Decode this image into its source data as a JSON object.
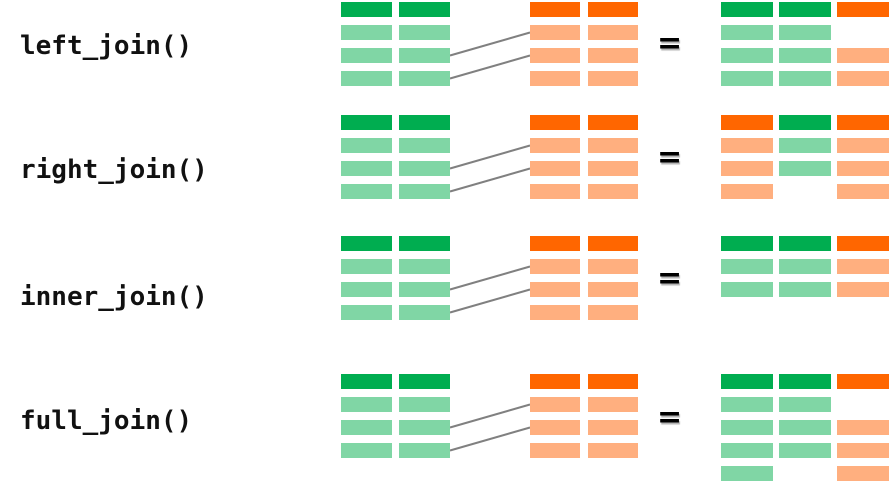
{
  "colors": {
    "left_header": "#00AD50",
    "left_row": "#80D6A5",
    "right_header": "#FF6600",
    "right_row": "#FFAF7F",
    "link_line": "#808080"
  },
  "equals_sign": "=",
  "panels": [
    {
      "id": "left-join",
      "label": "left_join()",
      "result": [
        [
          "left_header",
          "left_header",
          "right_header"
        ],
        [
          "left_row",
          "left_row",
          null
        ],
        [
          "left_row",
          "left_row",
          "right_row"
        ],
        [
          "left_row",
          "left_row",
          "right_row"
        ]
      ]
    },
    {
      "id": "right-join",
      "label": "right_join()",
      "result": [
        [
          "right_header",
          "left_header",
          "right_header"
        ],
        [
          "right_row",
          "left_row",
          "right_row"
        ],
        [
          "right_row",
          "left_row",
          "right_row"
        ],
        [
          "right_row",
          null,
          "right_row"
        ]
      ]
    },
    {
      "id": "inner-join",
      "label": "inner_join()",
      "result": [
        [
          "left_header",
          "left_header",
          "right_header"
        ],
        [
          "left_row",
          "left_row",
          "right_row"
        ],
        [
          "left_row",
          "left_row",
          "right_row"
        ]
      ]
    },
    {
      "id": "full-join",
      "label": "full_join()",
      "result": [
        [
          "left_header",
          "left_header",
          "right_header"
        ],
        [
          "left_row",
          "left_row",
          null
        ],
        [
          "left_row",
          "left_row",
          "right_row"
        ],
        [
          "left_row",
          "left_row",
          "right_row"
        ],
        [
          "left_row",
          null,
          "right_row"
        ]
      ]
    }
  ]
}
